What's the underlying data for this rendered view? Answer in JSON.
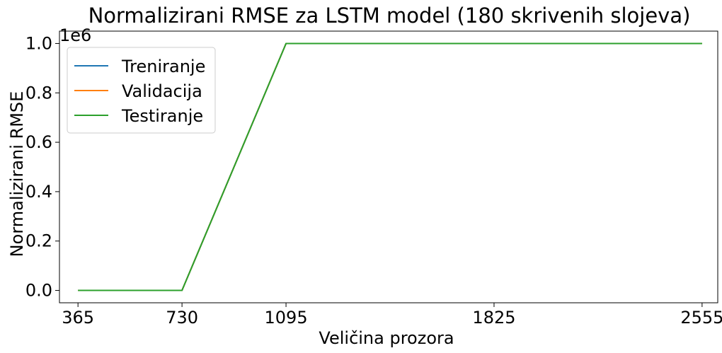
{
  "chart_data": {
    "type": "line",
    "title": "Normalizirani RMSE za LSTM model (180 skrivenih slojeva)",
    "xlabel": "Veličina prozora",
    "ylabel": "Normalizirani RMSE",
    "y_offset_label": "1e6",
    "x": [
      365,
      730,
      1095,
      1825,
      2555
    ],
    "x_ticks": [
      "365",
      "730",
      "1095",
      "1825",
      "2555"
    ],
    "y_ticks": [
      "0.0",
      "0.2",
      "0.4",
      "0.6",
      "0.8",
      "1.0"
    ],
    "xlim": [
      300,
      2610
    ],
    "ylim": [
      -0.05,
      1.05
    ],
    "grid": false,
    "legend_position": "upper-left",
    "series": [
      {
        "name": "Treniranje",
        "color": "#1f77b4",
        "values": [
          0.0,
          0.0,
          1.0,
          1.0,
          1.0
        ]
      },
      {
        "name": "Validacija",
        "color": "#ff7f0e",
        "values": [
          0.0,
          0.0,
          1.0,
          1.0,
          1.0
        ]
      },
      {
        "name": "Testiranje",
        "color": "#2ca02c",
        "values": [
          0.0,
          0.0,
          1.0,
          1.0,
          1.0
        ]
      }
    ]
  }
}
